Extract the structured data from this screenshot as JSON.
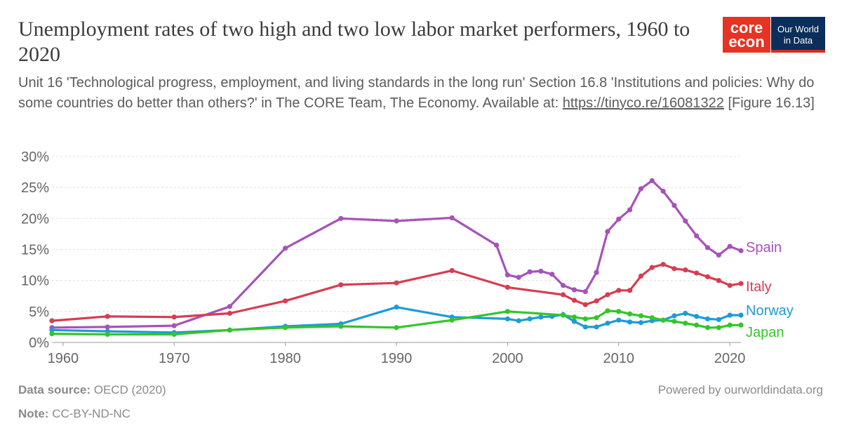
{
  "header": {
    "title": "Unemployment rates of two high and two low labor market performers, 1960 to 2020",
    "subtitle_text": "Unit 16 'Technological progress, employment, and living standards in the long run' Section 16.8 'Institutions and policies: Why do some countries do better than others?' in The CORE Team, The Economy. Available at: ",
    "subtitle_link": "https://tinyco.re/16081322",
    "subtitle_suffix": " [Figure 16.13]"
  },
  "logos": {
    "core_line1": "core",
    "core_line2": "econ",
    "owid_line1": "Our World",
    "owid_line2": "in Data",
    "core_color": "#e63323",
    "owid_color": "#0b2e5a"
  },
  "footer": {
    "source_label": "Data source:",
    "source_value": "OECD (2020)",
    "note_label": "Note:",
    "note_value": "CC-BY-ND-NC",
    "powered_by": "Powered by ourworldindata.org"
  },
  "chart_data": {
    "type": "line",
    "title": "",
    "xlabel": "",
    "ylabel": "",
    "xlim": [
      1959,
      2021
    ],
    "ylim": [
      0,
      30
    ],
    "x_ticks": [
      1960,
      1970,
      1980,
      1990,
      2000,
      2010,
      2020
    ],
    "y_ticks": [
      0,
      5,
      10,
      15,
      20,
      25,
      30
    ],
    "y_tick_labels": [
      "0%",
      "5%",
      "10%",
      "15%",
      "20%",
      "25%",
      "30%"
    ],
    "grid": "horizontal dashed",
    "legend": "labels at line ends (right)",
    "series": [
      {
        "name": "Spain",
        "color": "#a652ba",
        "x": [
          1959,
          1964,
          1970,
          1975,
          1980,
          1985,
          1990,
          1995,
          1999,
          2000,
          2001,
          2002,
          2003,
          2004,
          2005,
          2006,
          2007,
          2008,
          2009,
          2010,
          2011,
          2012,
          2013,
          2014,
          2015,
          2016,
          2017,
          2018,
          2019,
          2020,
          2021
        ],
        "y": [
          2.4,
          2.5,
          2.7,
          5.8,
          15.2,
          20.0,
          19.6,
          20.1,
          15.7,
          10.9,
          10.5,
          11.4,
          11.5,
          11.0,
          9.2,
          8.5,
          8.2,
          11.3,
          17.9,
          19.9,
          21.4,
          24.8,
          26.1,
          24.4,
          22.1,
          19.6,
          17.2,
          15.3,
          14.1,
          15.5,
          14.8
        ]
      },
      {
        "name": "Italy",
        "color": "#d73c50",
        "x": [
          1959,
          1964,
          1970,
          1975,
          1980,
          1985,
          1990,
          1995,
          2000,
          2005,
          2006,
          2007,
          2008,
          2009,
          2010,
          2011,
          2012,
          2013,
          2014,
          2015,
          2016,
          2017,
          2018,
          2019,
          2020,
          2021
        ],
        "y": [
          3.5,
          4.2,
          4.1,
          4.7,
          6.7,
          9.3,
          9.6,
          11.6,
          8.9,
          7.7,
          6.8,
          6.1,
          6.7,
          7.7,
          8.4,
          8.4,
          10.7,
          12.1,
          12.6,
          11.9,
          11.7,
          11.2,
          10.6,
          10.0,
          9.2,
          9.5
        ]
      },
      {
        "name": "Norway",
        "color": "#1d9bd6",
        "x": [
          1959,
          1964,
          1970,
          1975,
          1980,
          1985,
          1990,
          1995,
          2000,
          2001,
          2002,
          2003,
          2004,
          2005,
          2006,
          2007,
          2008,
          2009,
          2010,
          2011,
          2012,
          2013,
          2014,
          2015,
          2016,
          2017,
          2018,
          2019,
          2020,
          2021
        ],
        "y": [
          2.0,
          1.8,
          1.6,
          2.0,
          2.6,
          3.0,
          5.7,
          4.1,
          3.8,
          3.5,
          3.8,
          4.1,
          4.2,
          4.5,
          3.4,
          2.5,
          2.5,
          3.1,
          3.6,
          3.3,
          3.2,
          3.5,
          3.6,
          4.3,
          4.7,
          4.2,
          3.8,
          3.7,
          4.4,
          4.4
        ]
      },
      {
        "name": "Japan",
        "color": "#34c52a",
        "x": [
          1959,
          1964,
          1970,
          1975,
          1980,
          1985,
          1990,
          1995,
          2000,
          2005,
          2006,
          2007,
          2008,
          2009,
          2010,
          2011,
          2012,
          2013,
          2014,
          2015,
          2016,
          2017,
          2018,
          2019,
          2020,
          2021
        ],
        "y": [
          1.4,
          1.3,
          1.3,
          2.0,
          2.4,
          2.6,
          2.4,
          3.6,
          5.0,
          4.4,
          4.1,
          3.8,
          4.0,
          5.1,
          5.0,
          4.6,
          4.3,
          4.0,
          3.6,
          3.4,
          3.1,
          2.8,
          2.4,
          2.4,
          2.8,
          2.8
        ]
      }
    ]
  }
}
